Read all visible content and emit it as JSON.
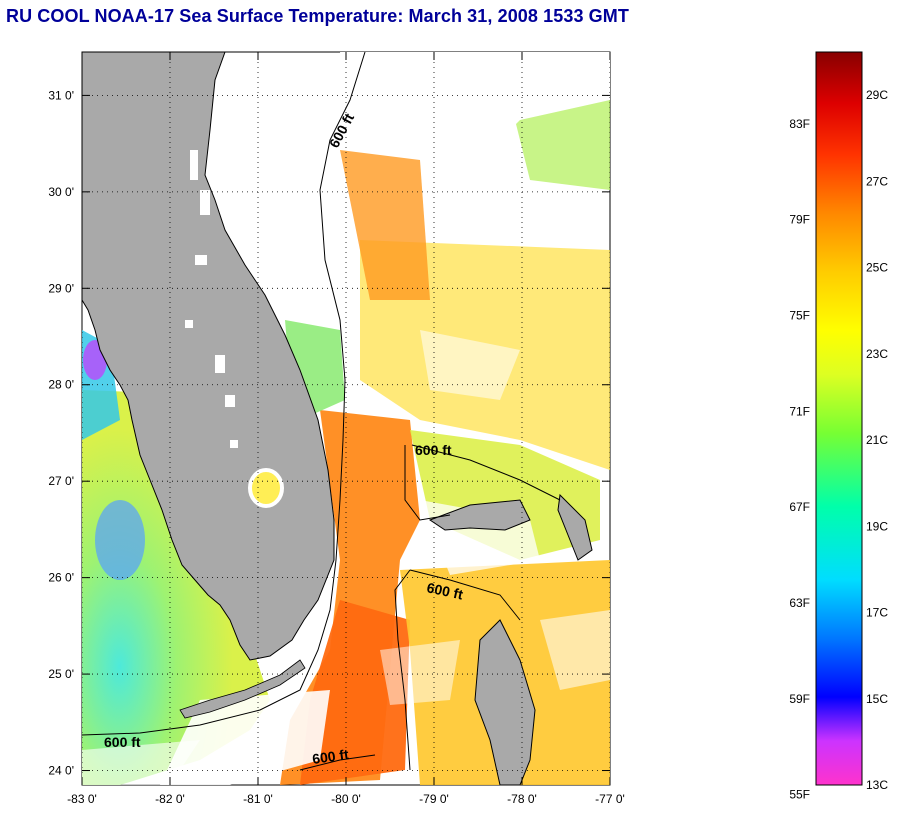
{
  "title": "RU COOL  NOAA-17  Sea Surface Temperature:  March 31, 2008 1533 GMT",
  "map": {
    "lon_labels": [
      "-83 0'",
      "-82 0'",
      "-81 0'",
      "-80 0'",
      "-79 0'",
      "-78 0'",
      "-77 0'"
    ],
    "lat_labels": [
      "31 0'",
      "30 0'",
      "29 0'",
      "28 0'",
      "27 0'",
      "26 0'",
      "25 0'",
      "24 0'"
    ],
    "lon_range": [
      -83,
      -77
    ],
    "lat_range": [
      23.85,
      31.45
    ],
    "contour_label": "600 ft",
    "colors": {
      "land": "#a9a9a9",
      "cloud": "#ffffff",
      "contour": "#000000",
      "coastline": "#000000"
    }
  },
  "colorbar": {
    "fahrenheit_labels": [
      "83F",
      "79F",
      "75F",
      "71F",
      "67F",
      "63F",
      "59F",
      "55F"
    ],
    "celsius_labels": [
      "29C",
      "27C",
      "25C",
      "23C",
      "21C",
      "19C",
      "17C",
      "15C",
      "13C"
    ],
    "range_celsius": [
      13,
      30
    ],
    "colors_bottom_to_top": [
      "#ff33cc",
      "#cc33ff",
      "#0000ff",
      "#0099ff",
      "#00ffff",
      "#00ff99",
      "#66ff33",
      "#ccff33",
      "#ffff00",
      "#ffcc00",
      "#ff8800",
      "#ff4400",
      "#ff0000",
      "#cc0000",
      "#880000"
    ]
  }
}
